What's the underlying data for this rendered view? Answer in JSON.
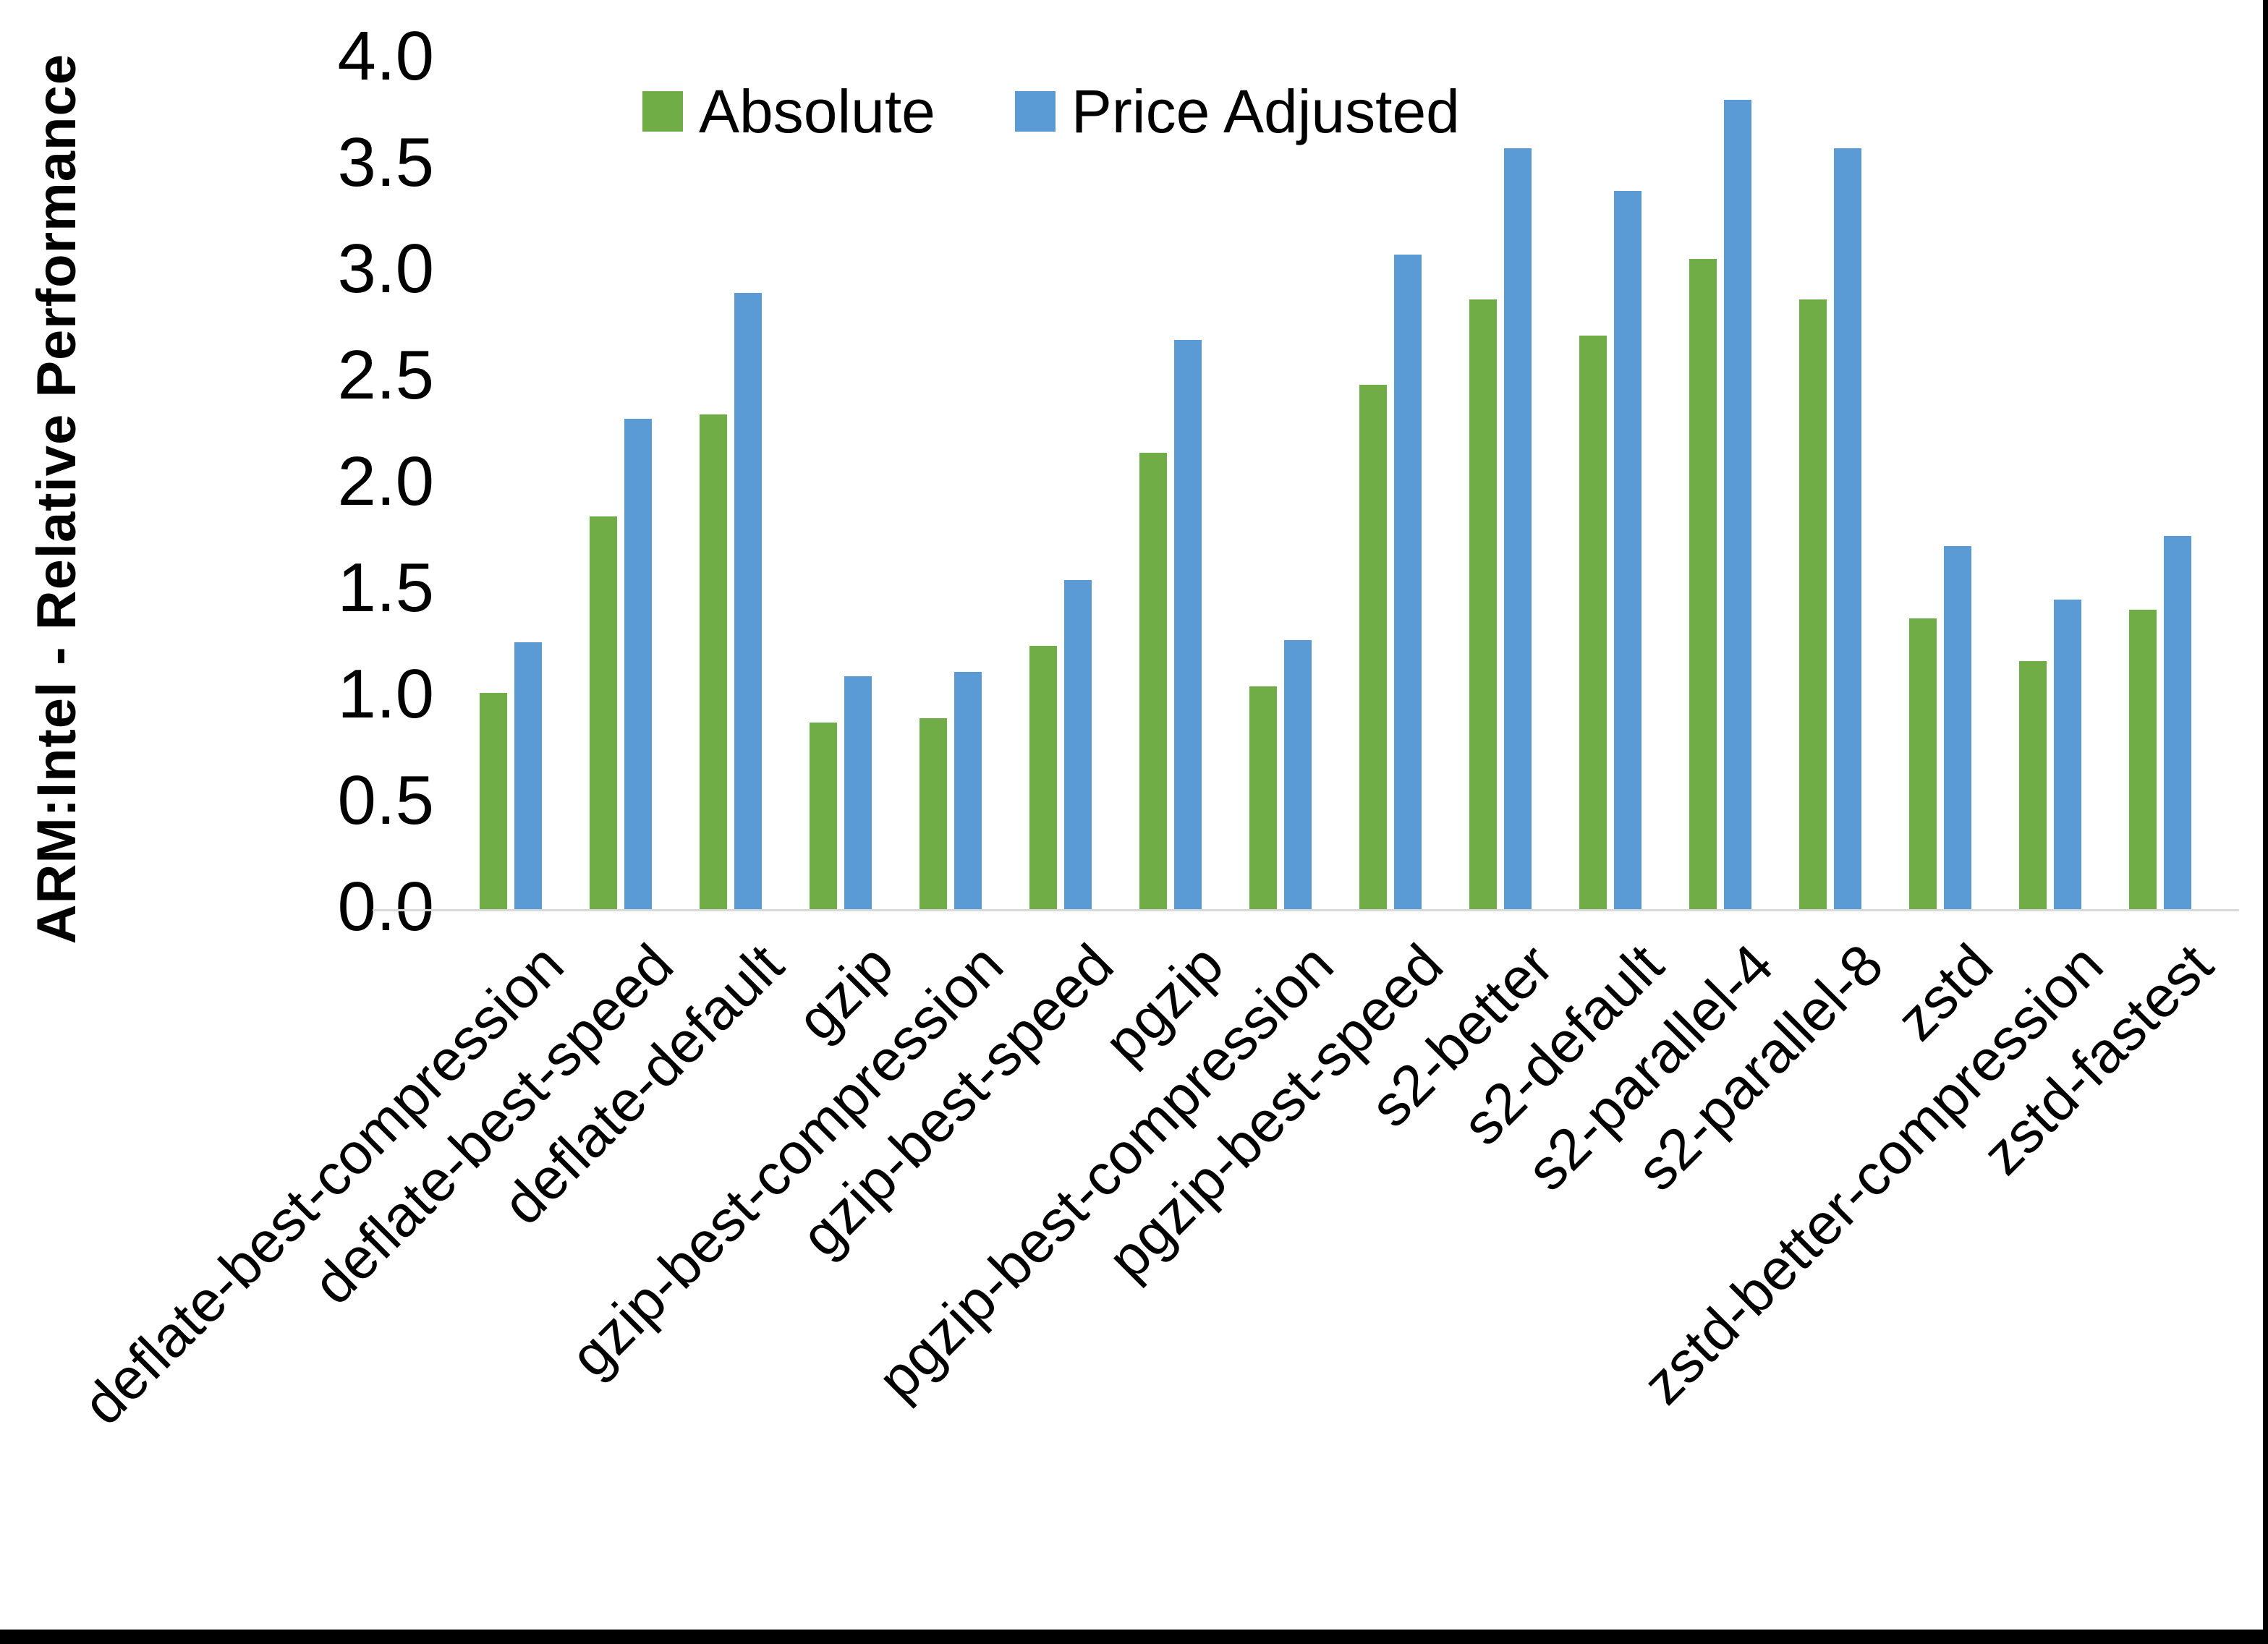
{
  "chart_data": {
    "type": "bar",
    "title": "",
    "ylabel": "ARM:Intel - Relative Performance",
    "xlabel": "",
    "ylim": [
      0.0,
      4.0
    ],
    "ytick_step": 0.5,
    "yticks": [
      "4.0",
      "3.5",
      "3.0",
      "2.5",
      "2.0",
      "1.5",
      "1.0",
      "0.5",
      "0.0"
    ],
    "grid": false,
    "legend_position": "top-center",
    "categories": [
      "deflate-best-compression",
      "deflate-best-speed",
      "deflate-default",
      "gzip",
      "gzip-best-compression",
      "gzip-best-speed",
      "pgzip",
      "pgzip-best-compression",
      "pgzip-best-speed",
      "s2-better",
      "s2-default",
      "s2-parallel-4",
      "s2-parallel-8",
      "zstd",
      "zstd-better-compression",
      "zstd-fastest"
    ],
    "series": [
      {
        "name": "Absolute",
        "color": "#70AD47",
        "values": [
          1.02,
          1.85,
          2.33,
          0.88,
          0.9,
          1.24,
          2.15,
          1.05,
          2.47,
          2.87,
          2.7,
          3.06,
          2.87,
          1.37,
          1.17,
          1.41
        ]
      },
      {
        "name": "Price Adjusted",
        "color": "#5B9BD5",
        "values": [
          1.26,
          2.31,
          2.9,
          1.1,
          1.12,
          1.55,
          2.68,
          1.27,
          3.08,
          3.58,
          3.38,
          3.81,
          3.58,
          1.71,
          1.46,
          1.76
        ]
      }
    ],
    "axis_line_color": "#D9D9D9",
    "text_color": "#000000"
  },
  "frame": {
    "right_edge_color": "#000000",
    "bottom_edge_color": "#000000"
  }
}
